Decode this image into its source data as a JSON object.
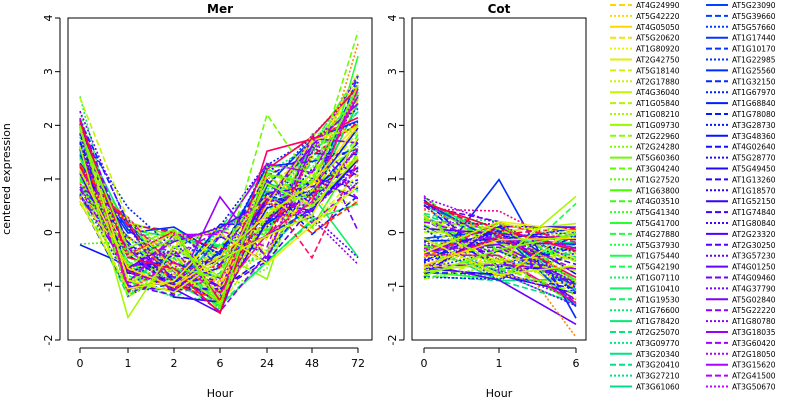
{
  "chart_data": [
    {
      "type": "line",
      "title": "Mer",
      "xlabel": "Hour",
      "ylabel": "centered expression",
      "x": [
        "0",
        "1",
        "2",
        "6",
        "24",
        "48",
        "72"
      ],
      "ylim": [
        -2,
        4
      ],
      "yticks": [
        "-2",
        "-1",
        "0",
        "1",
        "2",
        "3",
        "4"
      ],
      "grid": false,
      "series_summary": {
        "count": 96,
        "min": [
          -0.5,
          -1.7,
          -1.35,
          -1.85,
          -1.05,
          -0.8,
          -0.7
        ],
        "mean": [
          1.35,
          -0.45,
          -0.55,
          -0.65,
          0.35,
          0.9,
          1.75
        ],
        "max": [
          2.6,
          1.05,
          1.05,
          1.25,
          2.4,
          2.65,
          3.75
        ]
      }
    },
    {
      "type": "line",
      "title": "Cot",
      "xlabel": "Hour",
      "ylabel": "",
      "x": [
        "0",
        "1",
        "6"
      ],
      "ylim": [
        -2,
        4
      ],
      "yticks": [
        "-2",
        "-1",
        "0",
        "1",
        "2",
        "3",
        "4"
      ],
      "grid": false,
      "series_summary": {
        "count": 96,
        "min": [
          -1.05,
          -1.0,
          -1.95
        ],
        "mean": [
          -0.1,
          -0.35,
          -0.6
        ],
        "max": [
          1.75,
          1.1,
          0.95
        ]
      }
    }
  ],
  "legend": {
    "placement": "right",
    "entries": [
      {
        "name": "AT4G24990",
        "color": "#ffd700",
        "dash": "dash"
      },
      {
        "name": "AT5G42220",
        "color": "#ffd700",
        "dash": "dot"
      },
      {
        "name": "AT4G05050",
        "color": "#ffd700",
        "dash": "solid"
      },
      {
        "name": "AT5G20620",
        "color": "#f2e600",
        "dash": "dash"
      },
      {
        "name": "AT1G80920",
        "color": "#eaf000",
        "dash": "dot"
      },
      {
        "name": "AT2G42750",
        "color": "#e0f000",
        "dash": "solid"
      },
      {
        "name": "AT5G18140",
        "color": "#d6f200",
        "dash": "dash"
      },
      {
        "name": "AT2G17880",
        "color": "#ccf400",
        "dash": "dot"
      },
      {
        "name": "AT4G36040",
        "color": "#c2f600",
        "dash": "solid"
      },
      {
        "name": "AT1G05840",
        "color": "#b4f600",
        "dash": "dash"
      },
      {
        "name": "AT1G08210",
        "color": "#a6f800",
        "dash": "dot"
      },
      {
        "name": "AT1G09730",
        "color": "#98fa00",
        "dash": "solid"
      },
      {
        "name": "AT2G22960",
        "color": "#8afa00",
        "dash": "dash"
      },
      {
        "name": "AT2G24280",
        "color": "#7cfc00",
        "dash": "dot"
      },
      {
        "name": "AT5G60360",
        "color": "#6efc00",
        "dash": "solid"
      },
      {
        "name": "AT3G04240",
        "color": "#60fe00",
        "dash": "dash"
      },
      {
        "name": "AT1G27520",
        "color": "#52fe00",
        "dash": "dot"
      },
      {
        "name": "AT1G63800",
        "color": "#44ff00",
        "dash": "solid"
      },
      {
        "name": "AT4G03510",
        "color": "#38ff10",
        "dash": "dash"
      },
      {
        "name": "AT5G41340",
        "color": "#30ff20",
        "dash": "dot"
      },
      {
        "name": "AT5G41700",
        "color": "#28ff30",
        "dash": "solid"
      },
      {
        "name": "AT4G27880",
        "color": "#22ff38",
        "dash": "dash"
      },
      {
        "name": "AT5G37930",
        "color": "#1cff40",
        "dash": "dot"
      },
      {
        "name": "AT1G75440",
        "color": "#16ff48",
        "dash": "solid"
      },
      {
        "name": "AT5G42190",
        "color": "#12fc50",
        "dash": "dash"
      },
      {
        "name": "AT1G07110",
        "color": "#10f858",
        "dash": "dot"
      },
      {
        "name": "AT1G10410",
        "color": "#0ef460",
        "dash": "solid"
      },
      {
        "name": "AT1G19530",
        "color": "#0cf066",
        "dash": "dash"
      },
      {
        "name": "AT1G76600",
        "color": "#0aec6c",
        "dash": "dot"
      },
      {
        "name": "AT1G78420",
        "color": "#08e872",
        "dash": "solid"
      },
      {
        "name": "AT2G25070",
        "color": "#06e678",
        "dash": "dash"
      },
      {
        "name": "AT3G09770",
        "color": "#04e47c",
        "dash": "dot"
      },
      {
        "name": "AT3G20340",
        "color": "#02e280",
        "dash": "solid"
      },
      {
        "name": "AT3G20410",
        "color": "#00e084",
        "dash": "dash"
      },
      {
        "name": "AT3G27210",
        "color": "#00de88",
        "dash": "dot"
      },
      {
        "name": "AT3G61060",
        "color": "#00dc8c",
        "dash": "solid"
      },
      {
        "name": "AT5G23090",
        "color": "#0044ff",
        "dash": "solid"
      },
      {
        "name": "AT5G39660",
        "color": "#0040ff",
        "dash": "dash"
      },
      {
        "name": "AT5G57660",
        "color": "#003cff",
        "dash": "dot"
      },
      {
        "name": "AT1G17440",
        "color": "#0038ff",
        "dash": "solid"
      },
      {
        "name": "AT1G10170",
        "color": "#0034ff",
        "dash": "dash"
      },
      {
        "name": "AT1G22985",
        "color": "#0030ff",
        "dash": "dot"
      },
      {
        "name": "AT1G25560",
        "color": "#002cff",
        "dash": "solid"
      },
      {
        "name": "AT1G32150",
        "color": "#0028ff",
        "dash": "dash"
      },
      {
        "name": "AT1G67970",
        "color": "#0024ff",
        "dash": "dot"
      },
      {
        "name": "AT1G68840",
        "color": "#0020ff",
        "dash": "solid"
      },
      {
        "name": "AT1G78080",
        "color": "#001cff",
        "dash": "dash"
      },
      {
        "name": "AT3G28730",
        "color": "#0018ff",
        "dash": "dot"
      },
      {
        "name": "AT3G48360",
        "color": "#0814ff",
        "dash": "solid"
      },
      {
        "name": "AT4G02640",
        "color": "#1010ff",
        "dash": "dash"
      },
      {
        "name": "AT5G28770",
        "color": "#180cff",
        "dash": "dot"
      },
      {
        "name": "AT5G49450",
        "color": "#2008ff",
        "dash": "solid"
      },
      {
        "name": "AT1G13260",
        "color": "#2804ff",
        "dash": "dash"
      },
      {
        "name": "AT1G18570",
        "color": "#3000ff",
        "dash": "dot"
      },
      {
        "name": "AT1G52150",
        "color": "#3800ff",
        "dash": "solid"
      },
      {
        "name": "AT1G74840",
        "color": "#4000ff",
        "dash": "dash"
      },
      {
        "name": "AT1G80840",
        "color": "#4800ff",
        "dash": "dot"
      },
      {
        "name": "AT2G23320",
        "color": "#5000ff",
        "dash": "solid"
      },
      {
        "name": "AT2G30250",
        "color": "#5800ff",
        "dash": "dash"
      },
      {
        "name": "AT3G57230",
        "color": "#6000ff",
        "dash": "dot"
      },
      {
        "name": "AT4G01250",
        "color": "#6800ff",
        "dash": "solid"
      },
      {
        "name": "AT4G09460",
        "color": "#7000ff",
        "dash": "dash"
      },
      {
        "name": "AT4G37790",
        "color": "#7800ff",
        "dash": "dot"
      },
      {
        "name": "AT5G02840",
        "color": "#8000ff",
        "dash": "solid"
      },
      {
        "name": "AT5G22220",
        "color": "#8800ff",
        "dash": "dash"
      },
      {
        "name": "AT1G80780",
        "color": "#9000ff",
        "dash": "dot"
      },
      {
        "name": "AT3G18035",
        "color": "#9800ff",
        "dash": "solid"
      },
      {
        "name": "AT3G60420",
        "color": "#a000ff",
        "dash": "dash"
      },
      {
        "name": "AT2G18050",
        "color": "#a800ff",
        "dash": "dot"
      },
      {
        "name": "AT3G15620",
        "color": "#b000ff",
        "dash": "solid"
      },
      {
        "name": "AT2G41500",
        "color": "#b800ff",
        "dash": "dash"
      },
      {
        "name": "AT3G50670",
        "color": "#c000ff",
        "dash": "dot"
      }
    ]
  }
}
